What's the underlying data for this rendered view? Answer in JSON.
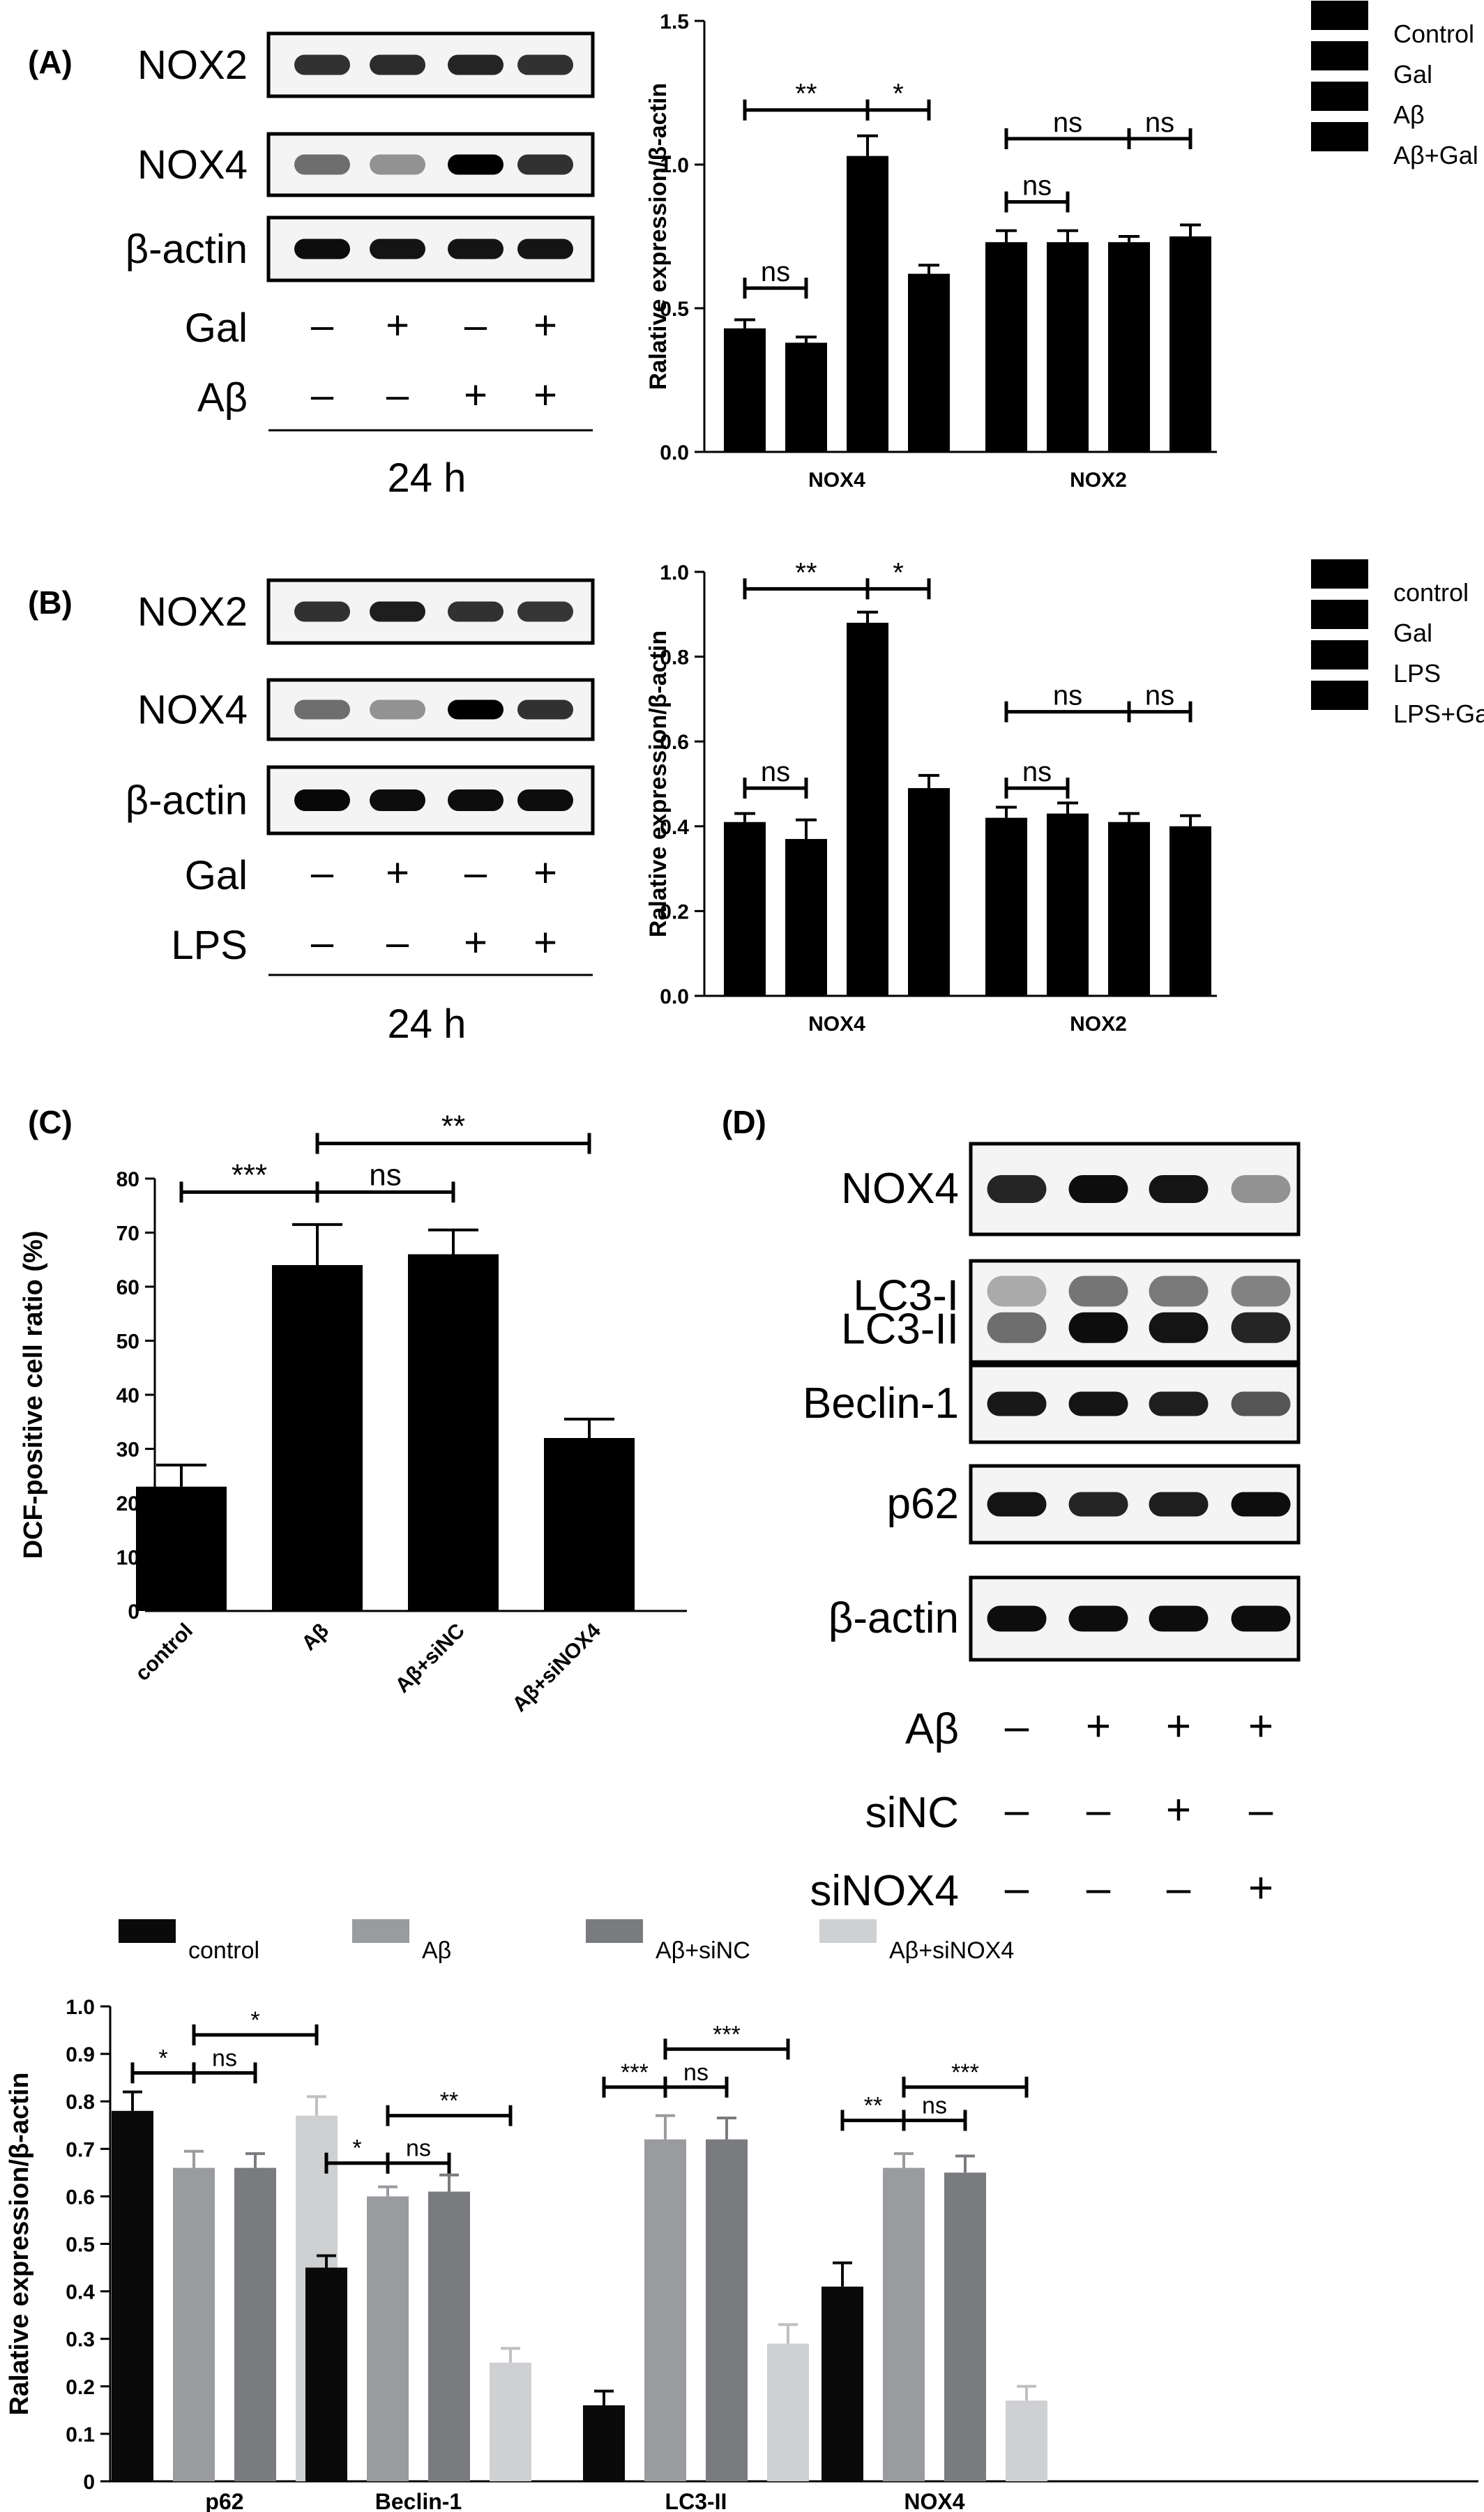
{
  "panels": {
    "A": {
      "letter": "(A)",
      "blot_time": "24 h"
    },
    "B": {
      "letter": "(B)",
      "blot_time": "24 h"
    },
    "C": {
      "letter": "(C)"
    },
    "D": {
      "letter": "(D)"
    },
    "E": {
      "letter": ""
    }
  },
  "blots": {
    "A": {
      "bands": [
        {
          "label": "NOX2",
          "intensity": [
            0.8,
            0.82,
            0.85,
            0.8
          ]
        },
        {
          "label": "NOX4",
          "intensity": [
            0.55,
            0.4,
            1.0,
            0.8
          ]
        },
        {
          "label": "β-actin",
          "intensity": [
            0.95,
            0.92,
            0.92,
            0.92
          ]
        }
      ],
      "treatments": [
        {
          "label": "Gal",
          "signs": [
            "–",
            "+",
            "–",
            "+"
          ]
        },
        {
          "label": "Aβ",
          "signs": [
            "–",
            "–",
            "+",
            "+"
          ]
        }
      ]
    },
    "B": {
      "bands": [
        {
          "label": "NOX2",
          "intensity": [
            0.8,
            0.88,
            0.8,
            0.78
          ]
        },
        {
          "label": "NOX4",
          "intensity": [
            0.55,
            0.4,
            1.0,
            0.8
          ]
        },
        {
          "label": "β-actin",
          "intensity": [
            0.97,
            0.95,
            0.95,
            0.95
          ]
        }
      ],
      "treatments": [
        {
          "label": "Gal",
          "signs": [
            "–",
            "+",
            "–",
            "+"
          ]
        },
        {
          "label": "LPS",
          "signs": [
            "–",
            "–",
            "+",
            "+"
          ]
        }
      ]
    },
    "D": {
      "bands": [
        {
          "label": "NOX4",
          "intensity": [
            0.85,
            0.95,
            0.92,
            0.4
          ]
        },
        {
          "label": "LC3-I\nLC3-II",
          "intensity": [
            0.55,
            0.95,
            0.92,
            0.85
          ]
        },
        {
          "label": "Beclin-1",
          "intensity": [
            0.9,
            0.92,
            0.88,
            0.65
          ]
        },
        {
          "label": "p62",
          "intensity": [
            0.92,
            0.85,
            0.88,
            0.95
          ]
        },
        {
          "label": "β-actin",
          "intensity": [
            0.95,
            0.95,
            0.95,
            0.95
          ]
        }
      ],
      "treatments": [
        {
          "label": "Aβ",
          "signs": [
            "–",
            "+",
            "+",
            "+"
          ]
        },
        {
          "label": "siNC",
          "signs": [
            "–",
            "–",
            "+",
            "–"
          ]
        },
        {
          "label": "siNOX4",
          "signs": [
            "–",
            "–",
            "–",
            "+"
          ]
        }
      ]
    }
  },
  "chart_data": [
    {
      "id": "A",
      "type": "bar",
      "ylabel": "Ralative expression/β-actin",
      "ylim": [
        0,
        1.5
      ],
      "yticks": [
        "0.0",
        "0.5",
        "1.0",
        "1.5"
      ],
      "yticks_values": [
        0,
        0.5,
        1.0,
        1.5
      ],
      "categories": [
        "NOX4",
        "NOX2"
      ],
      "legend": [
        "Control",
        "Gal",
        "Aβ",
        "Aβ+Gal"
      ],
      "legend_position": "top-right",
      "colors": [
        "#000000",
        "#000000",
        "#000000",
        "#000000"
      ],
      "series": [
        {
          "name": "Control",
          "values": [
            0.43,
            0.73
          ],
          "errors": [
            0.03,
            0.04
          ]
        },
        {
          "name": "Gal",
          "values": [
            0.38,
            0.73
          ],
          "errors": [
            0.02,
            0.04
          ]
        },
        {
          "name": "Aβ",
          "values": [
            1.03,
            0.73
          ],
          "errors": [
            0.07,
            0.02
          ]
        },
        {
          "name": "Aβ+Gal",
          "values": [
            0.62,
            0.75
          ],
          "errors": [
            0.03,
            0.04
          ]
        }
      ],
      "annotations": [
        {
          "cat": 0,
          "from": 0,
          "to": 2,
          "y": 1.19,
          "text": "**"
        },
        {
          "cat": 0,
          "from": 2,
          "to": 3,
          "y": 1.19,
          "text": "*"
        },
        {
          "cat": 0,
          "from": 0,
          "to": 1,
          "y": 0.57,
          "text": "ns"
        },
        {
          "cat": 1,
          "from": 0,
          "to": 2,
          "y": 1.09,
          "text": "ns"
        },
        {
          "cat": 1,
          "from": 2,
          "to": 3,
          "y": 1.09,
          "text": "ns"
        },
        {
          "cat": 1,
          "from": 0,
          "to": 1,
          "y": 0.87,
          "text": "ns"
        }
      ]
    },
    {
      "id": "B",
      "type": "bar",
      "ylabel": "Ralative expression/β-actin",
      "ylim": [
        0,
        1.0
      ],
      "yticks": [
        "0.0",
        "0.2",
        "0.4",
        "0.6",
        "0.8",
        "1.0"
      ],
      "yticks_values": [
        0,
        0.2,
        0.4,
        0.6,
        0.8,
        1.0
      ],
      "categories": [
        "NOX4",
        "NOX2"
      ],
      "legend": [
        "control",
        "Gal",
        "LPS",
        "LPS+Gal"
      ],
      "legend_position": "top-right",
      "colors": [
        "#000000",
        "#000000",
        "#000000",
        "#000000"
      ],
      "series": [
        {
          "name": "control",
          "values": [
            0.41,
            0.42
          ],
          "errors": [
            0.02,
            0.025
          ]
        },
        {
          "name": "Gal",
          "values": [
            0.37,
            0.43
          ],
          "errors": [
            0.045,
            0.025
          ]
        },
        {
          "name": "LPS",
          "values": [
            0.88,
            0.41
          ],
          "errors": [
            0.025,
            0.02
          ]
        },
        {
          "name": "LPS+Gal",
          "values": [
            0.49,
            0.4
          ],
          "errors": [
            0.03,
            0.025
          ]
        }
      ],
      "annotations": [
        {
          "cat": 0,
          "from": 0,
          "to": 2,
          "y": 0.96,
          "text": "**"
        },
        {
          "cat": 0,
          "from": 2,
          "to": 3,
          "y": 0.96,
          "text": "*"
        },
        {
          "cat": 0,
          "from": 0,
          "to": 1,
          "y": 0.49,
          "text": "ns"
        },
        {
          "cat": 1,
          "from": 0,
          "to": 2,
          "y": 0.67,
          "text": "ns"
        },
        {
          "cat": 1,
          "from": 2,
          "to": 3,
          "y": 0.67,
          "text": "ns"
        },
        {
          "cat": 1,
          "from": 0,
          "to": 1,
          "y": 0.49,
          "text": "ns"
        }
      ]
    },
    {
      "id": "C",
      "type": "bar",
      "ylabel": "DCF-positive cell ratio (%)",
      "ylim": [
        0,
        80
      ],
      "yticks": [
        "0",
        "10",
        "20",
        "30",
        "40",
        "50",
        "60",
        "70",
        "80"
      ],
      "yticks_values": [
        0,
        10,
        20,
        30,
        40,
        50,
        60,
        70,
        80
      ],
      "categories": [
        "control",
        "Aβ",
        "Aβ+siNC",
        "Aβ+siNOX4"
      ],
      "colors": [
        "#000000"
      ],
      "series": [
        {
          "values": [
            23,
            64,
            66,
            32
          ],
          "errors": [
            4,
            7.5,
            4.5,
            3.5
          ]
        }
      ],
      "annotations": [
        {
          "from": 0,
          "to": 1,
          "y": 77.5,
          "text": "***"
        },
        {
          "from": 1,
          "to": 2,
          "y": 77.5,
          "text": "ns"
        },
        {
          "from": 1,
          "to": 3,
          "y": 86.5,
          "text": "**"
        }
      ]
    },
    {
      "id": "E",
      "type": "bar",
      "ylabel": "Ralative expression/β-actin",
      "ylim": [
        0,
        1.0
      ],
      "yticks": [
        "0",
        "0.1",
        "0.2",
        "0.3",
        "0.4",
        "0.5",
        "0.6",
        "0.7",
        "0.8",
        "0.9",
        "1.0"
      ],
      "yticks_values": [
        0,
        0.1,
        0.2,
        0.3,
        0.4,
        0.5,
        0.6,
        0.7,
        0.8,
        0.9,
        1.0
      ],
      "categories": [
        "p62",
        "Beclin-1",
        "LC3-II",
        "NOX4"
      ],
      "legend": [
        "control",
        "Aβ",
        "Aβ+siNC",
        "Aβ+siNOX4"
      ],
      "legend_position": "top",
      "colors": [
        "#0a0a0a",
        "#9a9b9e",
        "#7a7b7e",
        "#cfd0d2"
      ],
      "series": [
        {
          "name": "control",
          "values": [
            0.78,
            0.45,
            0.16,
            0.41
          ],
          "errors": [
            0.04,
            0.025,
            0.03,
            0.05
          ]
        },
        {
          "name": "Aβ",
          "values": [
            0.66,
            0.6,
            0.72,
            0.66
          ],
          "errors": [
            0.035,
            0.02,
            0.05,
            0.03
          ]
        },
        {
          "name": "Aβ+siNC",
          "values": [
            0.66,
            0.61,
            0.72,
            0.65
          ],
          "errors": [
            0.03,
            0.035,
            0.045,
            0.035
          ]
        },
        {
          "name": "Aβ+siNOX4",
          "values": [
            0.77,
            0.25,
            0.29,
            0.17
          ],
          "errors": [
            0.04,
            0.03,
            0.04,
            0.03
          ]
        }
      ],
      "annotations": [
        {
          "cat": 0,
          "from": 0,
          "to": 1,
          "y": 0.86,
          "text": "*"
        },
        {
          "cat": 0,
          "from": 1,
          "to": 2,
          "y": 0.86,
          "text": "ns"
        },
        {
          "cat": 0,
          "from": 1,
          "to": 3,
          "y": 0.94,
          "text": "*"
        },
        {
          "cat": 1,
          "from": 0,
          "to": 1,
          "y": 0.67,
          "text": "*"
        },
        {
          "cat": 1,
          "from": 1,
          "to": 2,
          "y": 0.67,
          "text": "ns"
        },
        {
          "cat": 1,
          "from": 1,
          "to": 3,
          "y": 0.77,
          "text": "**"
        },
        {
          "cat": 2,
          "from": 0,
          "to": 1,
          "y": 0.83,
          "text": "***"
        },
        {
          "cat": 2,
          "from": 1,
          "to": 2,
          "y": 0.83,
          "text": "ns"
        },
        {
          "cat": 2,
          "from": 1,
          "to": 3,
          "y": 0.91,
          "text": "***"
        },
        {
          "cat": 3,
          "from": 0,
          "to": 1,
          "y": 0.76,
          "text": "**"
        },
        {
          "cat": 3,
          "from": 1,
          "to": 2,
          "y": 0.76,
          "text": "ns"
        },
        {
          "cat": 3,
          "from": 1,
          "to": 3,
          "y": 0.83,
          "text": "***"
        }
      ]
    }
  ]
}
